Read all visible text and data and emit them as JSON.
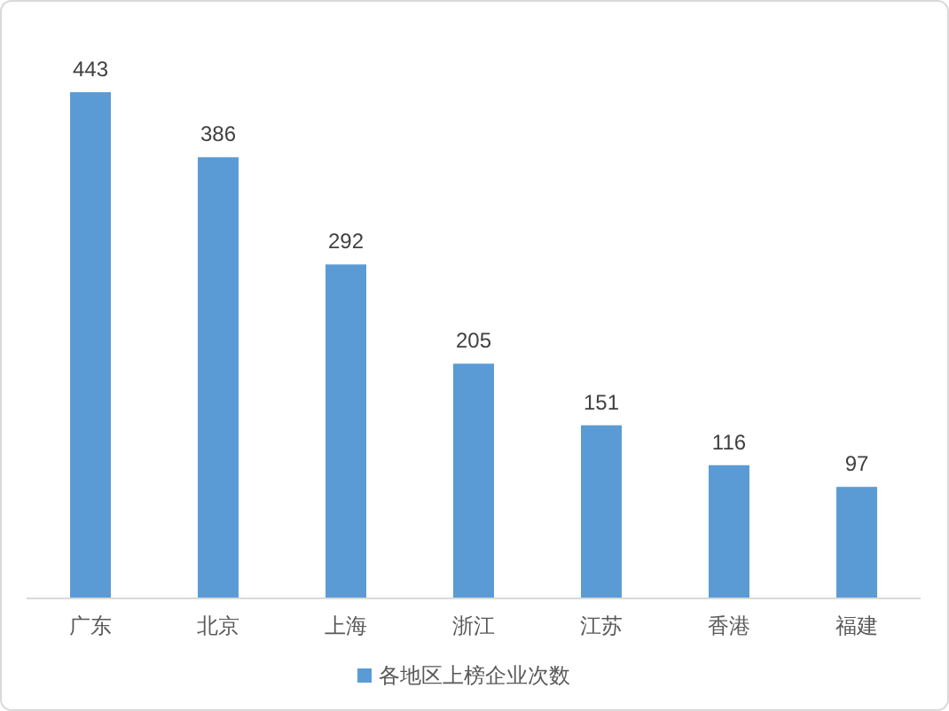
{
  "chart_data": {
    "type": "bar",
    "categories": [
      "广东",
      "北京",
      "上海",
      "浙江",
      "江苏",
      "香港",
      "福建"
    ],
    "series": [
      {
        "name": "各地区上榜企业次数",
        "color": "#5b9bd5",
        "values": [
          443,
          386,
          292,
          205,
          151,
          116,
          97
        ]
      }
    ],
    "data_labels": true,
    "legend": "bottom"
  }
}
